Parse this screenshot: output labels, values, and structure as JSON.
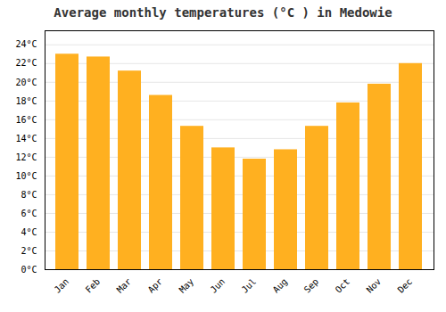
{
  "chart_data": {
    "type": "bar",
    "title": "Average monthly temperatures (°C ) in Medowie",
    "categories": [
      "Jan",
      "Feb",
      "Mar",
      "Apr",
      "May",
      "Jun",
      "Jul",
      "Aug",
      "Sep",
      "Oct",
      "Nov",
      "Dec"
    ],
    "values": [
      23.0,
      22.7,
      21.2,
      18.6,
      15.3,
      13.0,
      11.8,
      12.8,
      15.3,
      17.8,
      19.8,
      22.0
    ],
    "color": "#FFB020",
    "ylim": [
      0,
      25.5
    ],
    "yticks": [
      {
        "value": 0,
        "label": "0°C"
      },
      {
        "value": 2,
        "label": "2°C"
      },
      {
        "value": 4,
        "label": "4°C"
      },
      {
        "value": 6,
        "label": "6°C"
      },
      {
        "value": 8,
        "label": "8°C"
      },
      {
        "value": 10,
        "label": "10°C"
      },
      {
        "value": 12,
        "label": "12°C"
      },
      {
        "value": 14,
        "label": "14°C"
      },
      {
        "value": 16,
        "label": "16°C"
      },
      {
        "value": 18,
        "label": "18°C"
      },
      {
        "value": 20,
        "label": "20°C"
      },
      {
        "value": 22,
        "label": "22°C"
      },
      {
        "value": 24,
        "label": "24°C"
      }
    ],
    "grid": true
  }
}
